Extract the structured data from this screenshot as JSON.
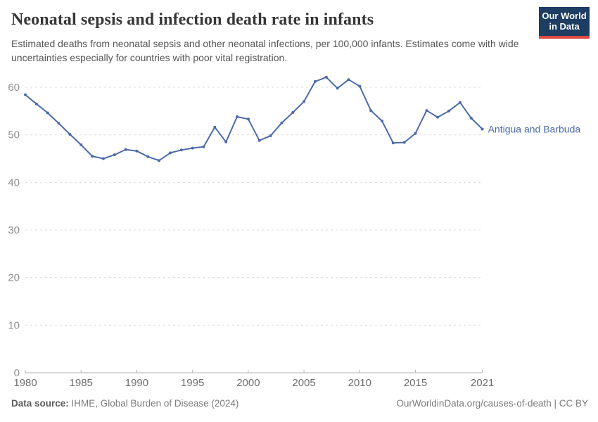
{
  "header": {
    "title": "Neonatal sepsis and infection death rate in infants",
    "subtitle": "Estimated deaths from neonatal sepsis and other neonatal infections, per 100,000 infants. Estimates come with wide uncertainties especially for countries with poor vital registration.",
    "logo": {
      "line1": "Our World",
      "line2": "in Data"
    }
  },
  "footer": {
    "source_label": "Data source:",
    "source_text": " IHME, Global Burden of Disease (2024)",
    "link_text": "OurWorldinData.org/causes-of-death | CC BY"
  },
  "colors": {
    "line": "#4c6ba8",
    "logo_bg": "#1d3d63",
    "logo_stripe": "#dc4a41",
    "grid": "#dcdcdc",
    "axis": "#b3b3b3",
    "x_tick_label": "#6e6e6e",
    "y_tick_label": "#8f8f8f"
  },
  "chart_data": {
    "type": "line",
    "title": "Neonatal sepsis and infection death rate in infants",
    "ylabel": "",
    "xlabel": "",
    "ylim": [
      0,
      60
    ],
    "yticks": [
      0,
      10,
      20,
      30,
      40,
      50,
      60
    ],
    "xticks": [
      1980,
      1985,
      1990,
      1995,
      2000,
      2005,
      2010,
      2015,
      2021
    ],
    "grid": "horizontal-dashed",
    "legend": "end-of-line-label",
    "x": [
      1980,
      1981,
      1982,
      1983,
      1984,
      1985,
      1986,
      1987,
      1988,
      1989,
      1990,
      1991,
      1992,
      1993,
      1994,
      1995,
      1996,
      1997,
      1998,
      1999,
      2000,
      2001,
      2002,
      2003,
      2004,
      2005,
      2006,
      2007,
      2008,
      2009,
      2010,
      2011,
      2012,
      2013,
      2014,
      2015,
      2016,
      2017,
      2018,
      2019,
      2020,
      2021
    ],
    "series": [
      {
        "name": "Antigua and Barbuda",
        "values": [
          58.4,
          56.5,
          54.6,
          52.4,
          50.1,
          47.9,
          45.5,
          45.0,
          45.8,
          46.9,
          46.6,
          45.4,
          44.6,
          46.2,
          46.8,
          47.2,
          47.5,
          51.6,
          48.5,
          53.8,
          53.3,
          48.8,
          49.8,
          52.5,
          54.7,
          57.0,
          61.2,
          62.1,
          59.8,
          61.6,
          60.2,
          55.1,
          52.9,
          48.3,
          48.4,
          50.3,
          55.1,
          53.7,
          55.0,
          56.8,
          53.5,
          51.2
        ]
      }
    ]
  }
}
